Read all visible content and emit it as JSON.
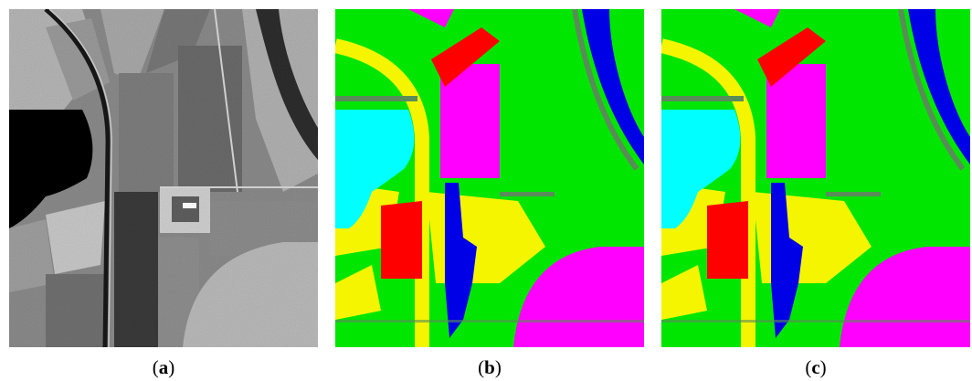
{
  "panels": [
    {
      "id": "a",
      "caption_open": "(",
      "caption_letter": "a",
      "caption_close": ")"
    },
    {
      "id": "b",
      "caption_open": "(",
      "caption_letter": "b",
      "caption_close": ")"
    },
    {
      "id": "c",
      "caption_open": "(",
      "caption_letter": "c",
      "caption_close": ")"
    }
  ],
  "class_colors": {
    "green": "#00e600",
    "yellow": "#f5f500",
    "magenta": "#ff00ff",
    "blue": "#0000e6",
    "red": "#ff0000",
    "cyan": "#00ffff",
    "gray_green": "#5a8c5a"
  }
}
